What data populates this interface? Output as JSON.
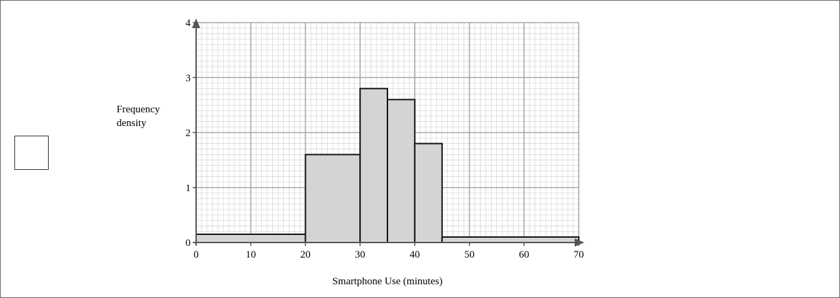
{
  "chart_data": {
    "type": "histogram",
    "xlabel": "Smartphone Use (minutes)",
    "ylabel_lines": [
      "Frequency",
      "density"
    ],
    "xlim": [
      0,
      70
    ],
    "ylim": [
      0,
      4
    ],
    "x_ticks": [
      0,
      10,
      20,
      30,
      40,
      50,
      60,
      70
    ],
    "y_ticks": [
      0,
      1,
      2,
      3,
      4
    ],
    "major_grid_x": 10,
    "major_grid_y": 1,
    "minor_grid_x": 1,
    "minor_grid_y": 0.1,
    "grid": true,
    "bars": [
      {
        "x0": 0,
        "x1": 20,
        "value": 0.15
      },
      {
        "x0": 20,
        "x1": 30,
        "value": 1.6
      },
      {
        "x0": 30,
        "x1": 35,
        "value": 2.8
      },
      {
        "x0": 35,
        "x1": 40,
        "value": 2.6
      },
      {
        "x0": 40,
        "x1": 45,
        "value": 1.8
      },
      {
        "x0": 45,
        "x1": 70,
        "value": 0.1
      }
    ]
  },
  "colors": {
    "bar_fill": "#d4d4d4",
    "bar_stroke": "#111111",
    "grid_major": "#a8a8a8",
    "grid_minor": "#d9d9d9",
    "axis": "#555555"
  }
}
